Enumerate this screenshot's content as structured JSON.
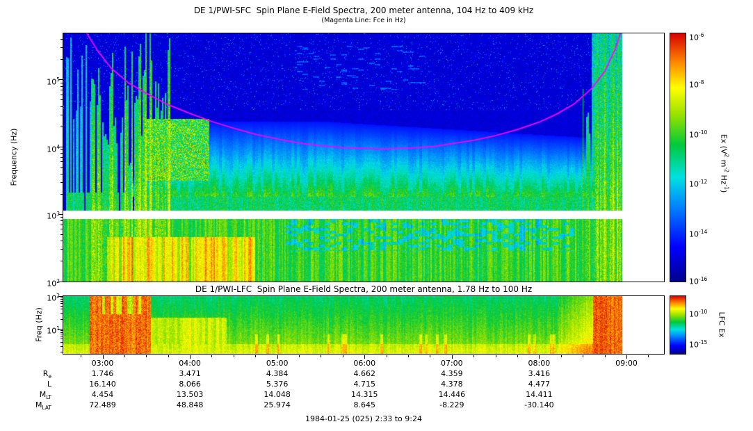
{
  "colors": {
    "fce_line": "#ff00ff",
    "plot_border": "#000000",
    "colormap": [
      {
        "p": 0.0,
        "c": "#00008c"
      },
      {
        "p": 0.14,
        "c": "#0000ff"
      },
      {
        "p": 0.3,
        "c": "#0082ff"
      },
      {
        "p": 0.42,
        "c": "#00e1e1"
      },
      {
        "p": 0.55,
        "c": "#00c83c"
      },
      {
        "p": 0.67,
        "c": "#96e100"
      },
      {
        "p": 0.78,
        "c": "#ffff00"
      },
      {
        "p": 0.88,
        "c": "#ff8c00"
      },
      {
        "p": 1.0,
        "c": "#d70000"
      }
    ]
  },
  "chart_data": [
    {
      "type": "heatmap",
      "name": "sfc-spectrogram",
      "title": "DE 1/PWI-SFC  Spin Plane E-Field Spectra, 200 meter antenna, 104 Hz to 409 kHz",
      "subtitle": "(Magenta Line: Fce in Hz)",
      "ylabel": "Frequency (Hz)",
      "y_scale": "log",
      "freq_range_hz": [
        104,
        409000
      ],
      "log_freq_top": 5.69,
      "log_freq_bottom": 2.0,
      "x_range_hours": [
        2.55,
        9.43
      ],
      "x_data_end_hours": 8.95,
      "x_ticks": [
        {
          "hour": 3,
          "label": "03:00"
        },
        {
          "hour": 4,
          "label": "04:00"
        },
        {
          "hour": 5,
          "label": "05:00"
        },
        {
          "hour": 6,
          "label": "06:00"
        },
        {
          "hour": 7,
          "label": "07:00"
        },
        {
          "hour": 8,
          "label": "08:00"
        },
        {
          "hour": 9,
          "label": "09:00"
        }
      ],
      "y_ticks": [
        {
          "logf": 5,
          "base": "10",
          "exp": "5"
        },
        {
          "logf": 4,
          "base": "10",
          "exp": "4"
        },
        {
          "logf": 3,
          "base": "10",
          "exp": "3"
        },
        {
          "logf": 2,
          "base": "10",
          "exp": "2"
        }
      ],
      "white_band_logf": [
        2.93,
        3.05
      ],
      "colorbar": {
        "label_parts": [
          {
            "t": "Ex (V"
          },
          {
            "sup": "2"
          },
          {
            "t": " m"
          },
          {
            "sup": "-2"
          },
          {
            "t": " Hz"
          },
          {
            "sup": "-1"
          },
          {
            "t": ")"
          }
        ],
        "ticks": [
          {
            "base": "10",
            "exp": "-6",
            "frac": 0.012
          },
          {
            "base": "10",
            "exp": "-8",
            "frac": 0.2
          },
          {
            "base": "10",
            "exp": "-10",
            "frac": 0.4
          },
          {
            "base": "10",
            "exp": "-12",
            "frac": 0.6
          },
          {
            "base": "10",
            "exp": "-14",
            "frac": 0.8
          },
          {
            "base": "10",
            "exp": "-16",
            "frac": 0.988
          }
        ]
      },
      "fce_line_points_hour_loghz": [
        [
          2.82,
          5.69
        ],
        [
          2.95,
          5.42
        ],
        [
          3.1,
          5.17
        ],
        [
          3.3,
          4.95
        ],
        [
          3.5,
          4.8
        ],
        [
          3.75,
          4.63
        ],
        [
          4.0,
          4.5
        ],
        [
          4.25,
          4.38
        ],
        [
          4.5,
          4.28
        ],
        [
          4.75,
          4.19
        ],
        [
          5.0,
          4.12
        ],
        [
          5.25,
          4.06
        ],
        [
          5.5,
          4.02
        ],
        [
          5.75,
          3.99
        ],
        [
          6.0,
          3.98
        ],
        [
          6.2,
          3.97
        ],
        [
          6.4,
          3.98
        ],
        [
          6.6,
          3.99
        ],
        [
          6.8,
          4.01
        ],
        [
          7.0,
          4.05
        ],
        [
          7.25,
          4.1
        ],
        [
          7.5,
          4.17
        ],
        [
          7.75,
          4.26
        ],
        [
          8.0,
          4.37
        ],
        [
          8.2,
          4.49
        ],
        [
          8.4,
          4.64
        ],
        [
          8.6,
          4.87
        ],
        [
          8.75,
          5.12
        ],
        [
          8.87,
          5.45
        ],
        [
          8.93,
          5.69
        ]
      ],
      "features": {
        "background_level": 0.07,
        "bottom_band": {
          "logf_below": 2.93,
          "yellow_hours": [
            3.05,
            4.75
          ],
          "cyan_patch_hours": [
            5.1,
            8.4
          ]
        },
        "hiss_band": {
          "hours": [
            3.3,
            8.78
          ],
          "logf_base": 3.26,
          "logf_peak": 4.38
        },
        "mid_band_logf": [
          3.05,
          3.32
        ],
        "left_broadband_hours": [
          2.55,
          3.78
        ],
        "burst_blob": {
          "hours": [
            3.48,
            4.22
          ],
          "logf": [
            3.5,
            4.42
          ]
        },
        "right_broadband_hours": [
          8.5,
          8.95
        ]
      }
    },
    {
      "type": "heatmap",
      "name": "lfc-spectrogram",
      "title": "DE 1/PWI-LFC  Spin Plane E-Field Spectra, 200 meter antenna, 1.78 Hz to 100 Hz",
      "ylabel": "Freq (Hz)",
      "y_scale": "log",
      "freq_range_hz": [
        1.78,
        100
      ],
      "log_freq_top": 2.0,
      "log_freq_bottom": 0.25,
      "x_range_hours": [
        2.55,
        9.43
      ],
      "x_data_end_hours": 8.95,
      "y_ticks": [
        {
          "logf": 2,
          "base": "10",
          "exp": "2"
        },
        {
          "logf": 1,
          "base": "10",
          "exp": "1"
        }
      ],
      "colorbar": {
        "label": "LFC Ex",
        "ticks": [
          {
            "base": "10",
            "exp": "-10",
            "frac": 0.28
          },
          {
            "base": "10",
            "exp": "-15",
            "frac": 0.8
          }
        ]
      },
      "features": {
        "red_block_hours": [
          2.85,
          3.55
        ],
        "orange_tail_hours": [
          3.55,
          4.42
        ],
        "right_red_hours": [
          8.62,
          8.95
        ]
      }
    },
    {
      "type": "table",
      "name": "ephemeris",
      "column_hours": [
        3,
        4,
        5,
        6,
        7,
        8
      ],
      "rows": [
        {
          "label_parts": [
            {
              "t": "R"
            },
            {
              "sub": "e"
            }
          ],
          "values": [
            "1.746",
            "3.471",
            "4.384",
            "4.662",
            "4.359",
            "3.416"
          ]
        },
        {
          "label_parts": [
            {
              "t": "L"
            }
          ],
          "values": [
            "16.140",
            "8.066",
            "5.376",
            "4.715",
            "4.378",
            "4.477"
          ]
        },
        {
          "label_parts": [
            {
              "t": "M"
            },
            {
              "sub": "LT"
            }
          ],
          "values": [
            "4.454",
            "13.503",
            "14.048",
            "14.315",
            "14.446",
            "14.411"
          ]
        },
        {
          "label_parts": [
            {
              "t": "M"
            },
            {
              "sub": "LAT"
            }
          ],
          "values": [
            "72.489",
            "48.848",
            "25.974",
            "8.645",
            "-8.229",
            "-30.140"
          ]
        }
      ]
    }
  ],
  "footer": {
    "text": "1984-01-25 (025) 2:33 to 9:24"
  }
}
